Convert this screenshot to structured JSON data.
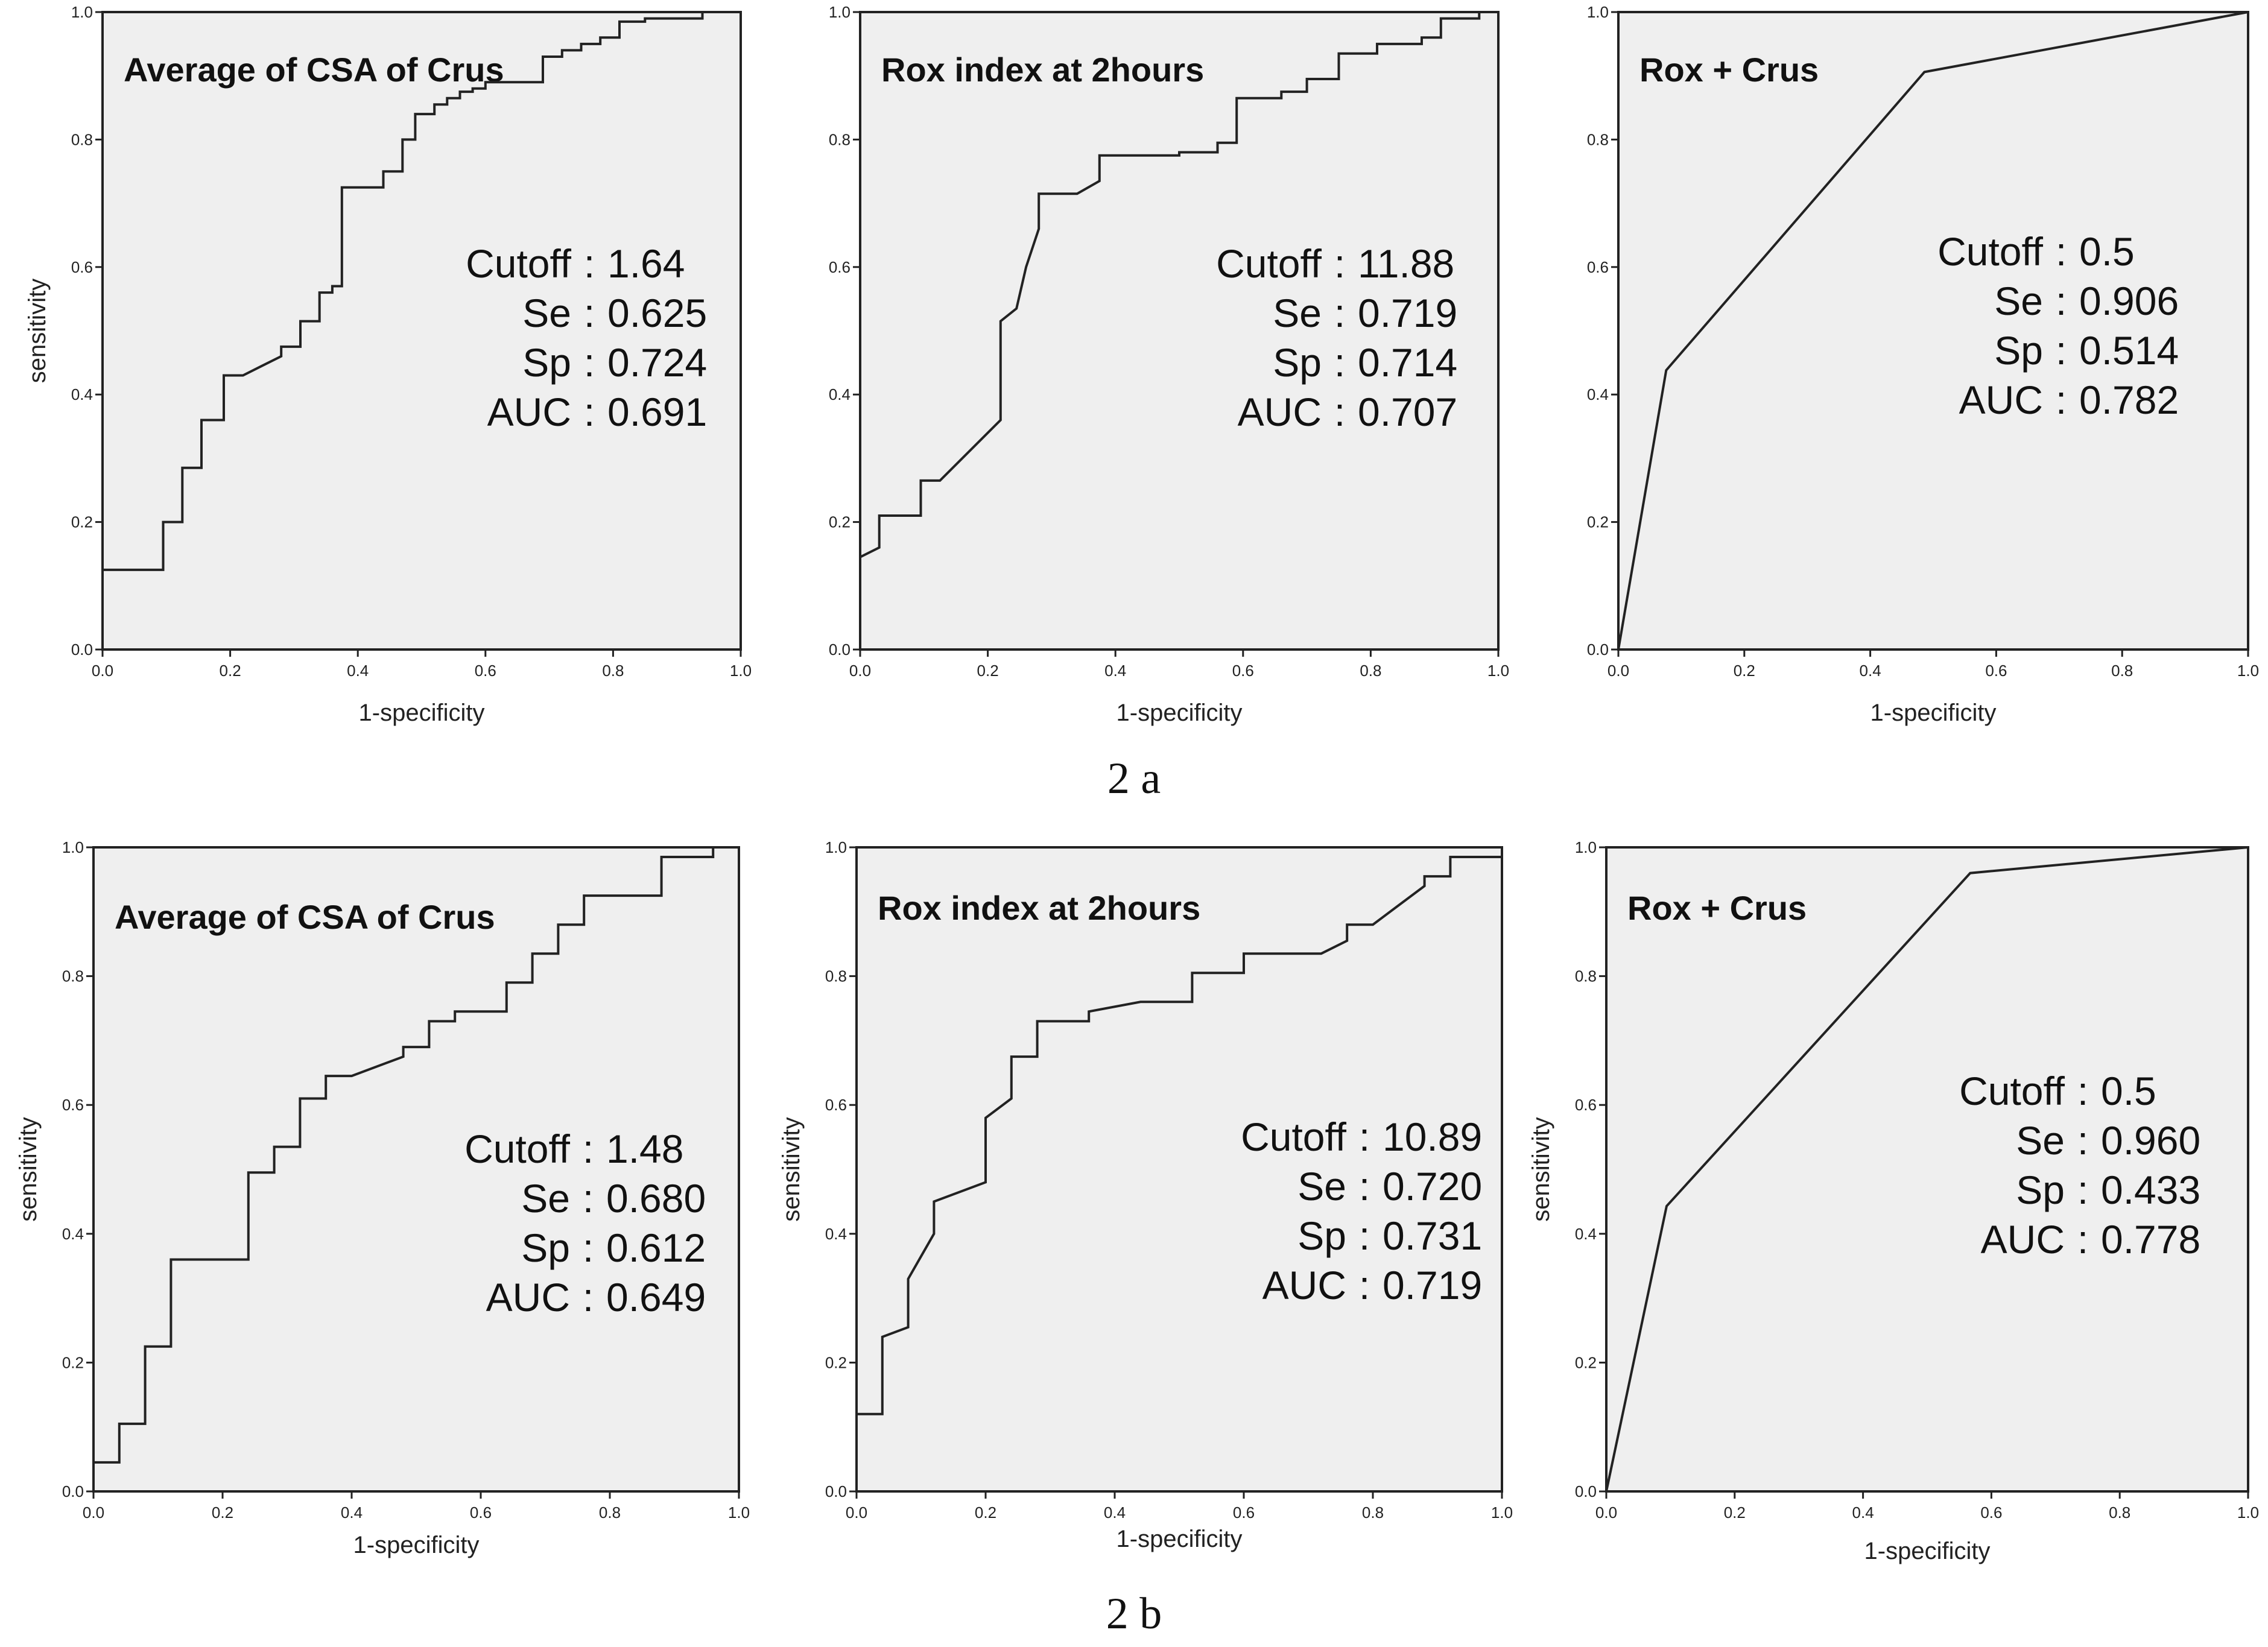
{
  "captions": [
    "2 a",
    "2 b"
  ],
  "chart_data": [
    {
      "type": "line",
      "group": "2 a",
      "title": "Average of CSA of Crus",
      "xlabel": "1-specificity",
      "ylabel": "sensitivity",
      "xlim": [
        0,
        1
      ],
      "ylim": [
        0,
        1
      ],
      "ticks": [
        "0.0",
        "0.2",
        "0.4",
        "0.6",
        "0.8",
        "1.0"
      ],
      "stats": [
        {
          "label": "Cutoff",
          "value": "1.64"
        },
        {
          "label": "Se",
          "value": "0.625"
        },
        {
          "label": "Sp",
          "value": "0.724"
        },
        {
          "label": "AUC",
          "value": "0.691"
        }
      ],
      "x": [
        0.0,
        0.0,
        0.095,
        0.095,
        0.125,
        0.125,
        0.155,
        0.155,
        0.19,
        0.19,
        0.22,
        0.25,
        0.28,
        0.28,
        0.31,
        0.31,
        0.34,
        0.34,
        0.36,
        0.36,
        0.375,
        0.375,
        0.44,
        0.44,
        0.47,
        0.47,
        0.49,
        0.49,
        0.52,
        0.52,
        0.54,
        0.54,
        0.56,
        0.56,
        0.58,
        0.58,
        0.6,
        0.6,
        0.69,
        0.69,
        0.72,
        0.72,
        0.75,
        0.75,
        0.78,
        0.78,
        0.81,
        0.81,
        0.85,
        0.85,
        0.94,
        0.94,
        1.0
      ],
      "y": [
        0.0,
        0.125,
        0.125,
        0.2,
        0.2,
        0.285,
        0.285,
        0.36,
        0.36,
        0.43,
        0.43,
        0.445,
        0.46,
        0.475,
        0.475,
        0.515,
        0.515,
        0.56,
        0.56,
        0.57,
        0.57,
        0.725,
        0.725,
        0.75,
        0.75,
        0.8,
        0.8,
        0.84,
        0.84,
        0.855,
        0.855,
        0.865,
        0.865,
        0.875,
        0.875,
        0.88,
        0.88,
        0.89,
        0.89,
        0.93,
        0.93,
        0.94,
        0.94,
        0.95,
        0.95,
        0.96,
        0.96,
        0.985,
        0.985,
        0.99,
        0.99,
        1.0,
        1.0
      ]
    },
    {
      "type": "line",
      "group": "2 a",
      "title": "Rox index at 2hours",
      "xlabel": "1-specificity",
      "ylabel": "",
      "xlim": [
        0,
        1
      ],
      "ylim": [
        0,
        1
      ],
      "ticks": [
        "0.0",
        "0.2",
        "0.4",
        "0.6",
        "0.8",
        "1.0"
      ],
      "stats": [
        {
          "label": "Cutoff",
          "value": "11.88"
        },
        {
          "label": "Se",
          "value": "0.719"
        },
        {
          "label": "Sp",
          "value": "0.714"
        },
        {
          "label": "AUC",
          "value": "0.707"
        }
      ],
      "x": [
        0.0,
        0.0,
        0.03,
        0.03,
        0.095,
        0.095,
        0.125,
        0.22,
        0.22,
        0.245,
        0.26,
        0.28,
        0.28,
        0.34,
        0.375,
        0.375,
        0.5,
        0.5,
        0.56,
        0.56,
        0.59,
        0.59,
        0.66,
        0.66,
        0.7,
        0.7,
        0.75,
        0.75,
        0.81,
        0.81,
        0.88,
        0.88,
        0.91,
        0.91,
        0.97,
        0.97,
        1.0
      ],
      "y": [
        0.0,
        0.145,
        0.16,
        0.21,
        0.21,
        0.265,
        0.265,
        0.36,
        0.515,
        0.535,
        0.6,
        0.66,
        0.715,
        0.715,
        0.735,
        0.775,
        0.775,
        0.78,
        0.78,
        0.795,
        0.795,
        0.865,
        0.865,
        0.875,
        0.875,
        0.895,
        0.895,
        0.935,
        0.935,
        0.95,
        0.95,
        0.96,
        0.96,
        0.99,
        0.99,
        1.0,
        1.0
      ]
    },
    {
      "type": "line",
      "group": "2 a",
      "title": "Rox + Crus",
      "xlabel": "1-specificity",
      "ylabel": "",
      "xlim": [
        0,
        1
      ],
      "ylim": [
        0,
        1
      ],
      "ticks": [
        "0.0",
        "0.2",
        "0.4",
        "0.6",
        "0.8",
        "1.0"
      ],
      "stats": [
        {
          "label": "Cutoff",
          "value": "0.5"
        },
        {
          "label": "Se",
          "value": "0.906"
        },
        {
          "label": "Sp",
          "value": "0.514"
        },
        {
          "label": "AUC",
          "value": "0.782"
        }
      ],
      "x": [
        0.0,
        0.076,
        0.486,
        1.0
      ],
      "y": [
        0.0,
        0.438,
        0.906,
        1.0
      ]
    },
    {
      "type": "line",
      "group": "2 b",
      "title": "Average of CSA of Crus",
      "xlabel": "1-specificity",
      "ylabel": "sensitivity",
      "xlim": [
        0,
        1
      ],
      "ylim": [
        0,
        1
      ],
      "ticks": [
        "0.0",
        "0.2",
        "0.4",
        "0.6",
        "0.8",
        "1.0"
      ],
      "stats": [
        {
          "label": "Cutoff",
          "value": "1.48"
        },
        {
          "label": "Se",
          "value": "0.680"
        },
        {
          "label": "Sp",
          "value": "0.612"
        },
        {
          "label": "AUC",
          "value": "0.649"
        }
      ],
      "x": [
        0.0,
        0.0,
        0.04,
        0.04,
        0.08,
        0.08,
        0.12,
        0.12,
        0.24,
        0.24,
        0.28,
        0.28,
        0.32,
        0.32,
        0.36,
        0.36,
        0.4,
        0.48,
        0.48,
        0.52,
        0.52,
        0.56,
        0.56,
        0.64,
        0.64,
        0.68,
        0.68,
        0.72,
        0.72,
        0.76,
        0.76,
        0.88,
        0.88,
        0.96,
        0.96,
        1.0
      ],
      "y": [
        0.0,
        0.045,
        0.045,
        0.105,
        0.105,
        0.225,
        0.225,
        0.36,
        0.36,
        0.495,
        0.495,
        0.535,
        0.535,
        0.61,
        0.61,
        0.645,
        0.645,
        0.675,
        0.69,
        0.69,
        0.73,
        0.73,
        0.745,
        0.745,
        0.79,
        0.79,
        0.835,
        0.835,
        0.88,
        0.88,
        0.925,
        0.925,
        0.985,
        0.985,
        1.0,
        1.0
      ]
    },
    {
      "type": "line",
      "group": "2 b",
      "title": "Rox index at 2hours",
      "xlabel": "1-specificity",
      "ylabel": "sensitivity",
      "xlim": [
        0,
        1
      ],
      "ylim": [
        0,
        1
      ],
      "ticks": [
        "0.0",
        "0.2",
        "0.4",
        "0.6",
        "0.8",
        "1.0"
      ],
      "stats": [
        {
          "label": "Cutoff",
          "value": "10.89"
        },
        {
          "label": "Se",
          "value": "0.720"
        },
        {
          "label": "Sp",
          "value": "0.731"
        },
        {
          "label": "AUC",
          "value": "0.719"
        }
      ],
      "x": [
        0.0,
        0.0,
        0.04,
        0.04,
        0.08,
        0.08,
        0.12,
        0.12,
        0.2,
        0.2,
        0.24,
        0.24,
        0.28,
        0.28,
        0.36,
        0.36,
        0.44,
        0.52,
        0.52,
        0.6,
        0.6,
        0.72,
        0.76,
        0.76,
        0.8,
        0.84,
        0.84,
        0.88,
        0.88,
        0.92,
        0.92,
        1.0
      ],
      "y": [
        0.0,
        0.12,
        0.12,
        0.24,
        0.255,
        0.33,
        0.4,
        0.45,
        0.48,
        0.58,
        0.61,
        0.675,
        0.675,
        0.73,
        0.73,
        0.745,
        0.76,
        0.76,
        0.805,
        0.805,
        0.835,
        0.835,
        0.855,
        0.88,
        0.88,
        0.91,
        0.91,
        0.94,
        0.955,
        0.955,
        0.985,
        0.985
      ]
    },
    {
      "type": "line",
      "group": "2 b",
      "title": "Rox + Crus",
      "xlabel": "1-specificity",
      "ylabel": "sensitivity",
      "xlim": [
        0,
        1
      ],
      "ylim": [
        0,
        1
      ],
      "ticks": [
        "0.0",
        "0.2",
        "0.4",
        "0.6",
        "0.8",
        "1.0"
      ],
      "stats": [
        {
          "label": "Cutoff",
          "value": "0.5"
        },
        {
          "label": "Se",
          "value": "0.960"
        },
        {
          "label": "Sp",
          "value": "0.433"
        },
        {
          "label": "AUC",
          "value": "0.778"
        }
      ],
      "x": [
        0.0,
        0.094,
        0.567,
        1.0
      ],
      "y": [
        0.0,
        0.443,
        0.96,
        1.0
      ]
    }
  ]
}
